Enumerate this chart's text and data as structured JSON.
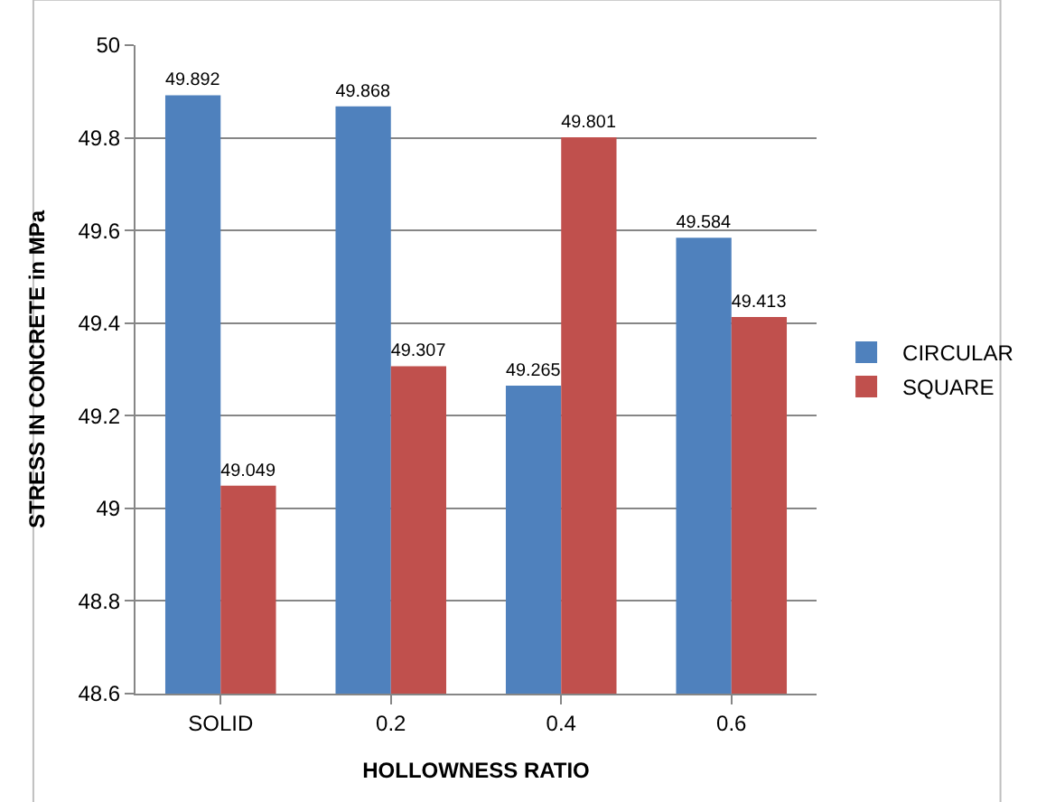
{
  "chart_data": {
    "type": "bar",
    "xlabel": "HOLLOWNESS RATIO",
    "ylabel": "STRESS IN CONCRETE in MPa",
    "categories": [
      "SOLID",
      "0.2",
      "0.4",
      "0.6"
    ],
    "series": [
      {
        "name": "CIRCULAR",
        "color": "#4f81bd",
        "values": [
          49.892,
          49.868,
          49.265,
          49.584
        ]
      },
      {
        "name": "SQUARE",
        "color": "#c0504d",
        "values": [
          49.049,
          49.307,
          49.801,
          49.413
        ]
      }
    ],
    "ylim": [
      48.6,
      50
    ],
    "yticks": [
      48.6,
      48.8,
      49,
      49.2,
      49.4,
      49.6,
      49.8,
      50
    ],
    "grid": "y",
    "legend": "right",
    "data_labels": true
  }
}
